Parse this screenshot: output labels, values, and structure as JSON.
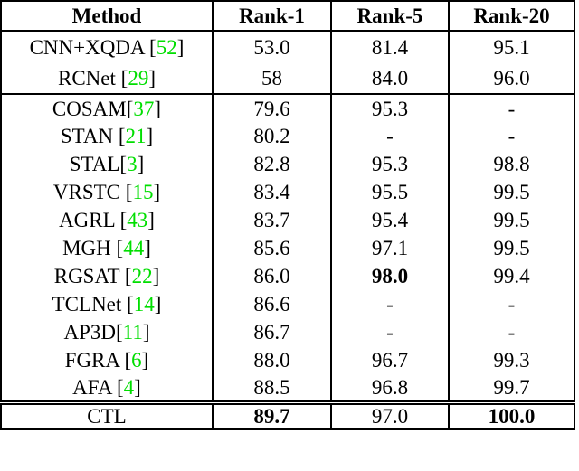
{
  "colors": {
    "citation_green": "#00DE00"
  },
  "table": {
    "headers": {
      "method": "Method",
      "rank1": "Rank-1",
      "rank5": "Rank-5",
      "rank20": "Rank-20"
    },
    "rows": [
      {
        "name": "CNN+XQDA ",
        "open": "[",
        "cite": "52",
        "close": "]",
        "rank1": "53.0",
        "rank5": "81.4",
        "rank20": "95.1"
      },
      {
        "name": "RCNet ",
        "open": "[",
        "cite": "29",
        "close": "]",
        "rank1": "58",
        "rank5": "84.0",
        "rank20": "96.0"
      },
      {
        "name": "COSAM",
        "open": "[",
        "cite": "37",
        "close": "]",
        "rank1": "79.6",
        "rank5": "95.3",
        "rank20": "-"
      },
      {
        "name": "STAN ",
        "open": "[",
        "cite": "21",
        "close": "]",
        "rank1": "80.2",
        "rank5": "-",
        "rank20": "-"
      },
      {
        "name": "STAL",
        "open": "[",
        "cite": "3",
        "close": "]",
        "rank1": "82.8",
        "rank5": "95.3",
        "rank20": "98.8"
      },
      {
        "name": "VRSTC ",
        "open": "[",
        "cite": "15",
        "close": "]",
        "rank1": "83.4",
        "rank5": "95.5",
        "rank20": "99.5"
      },
      {
        "name": "AGRL ",
        "open": "[",
        "cite": "43",
        "close": "]",
        "rank1": "83.7",
        "rank5": "95.4",
        "rank20": "99.5"
      },
      {
        "name": "MGH ",
        "open": "[",
        "cite": "44",
        "close": "]",
        "rank1": "85.6",
        "rank5": "97.1",
        "rank20": "99.5"
      },
      {
        "name": "RGSAT ",
        "open": "[",
        "cite": "22",
        "close": "]",
        "rank1": "86.0",
        "rank5": "98.0",
        "rank20": "99.4"
      },
      {
        "name": "TCLNet ",
        "open": "[",
        "cite": "14",
        "close": "]",
        "rank1": "86.6",
        "rank5": "-",
        "rank20": "-"
      },
      {
        "name": "AP3D",
        "open": "[",
        "cite": "11",
        "close": "]",
        "rank1": "86.7",
        "rank5": "-",
        "rank20": "-"
      },
      {
        "name": "FGRA ",
        "open": "[",
        "cite": "6",
        "close": "]",
        "rank1": "88.0",
        "rank5": "96.7",
        "rank20": "99.3"
      },
      {
        "name": "AFA ",
        "open": "[",
        "cite": "4",
        "close": "]",
        "rank1": "88.5",
        "rank5": "96.8",
        "rank20": "99.7"
      },
      {
        "name": "CTL",
        "open": "",
        "cite": "",
        "close": "",
        "rank1": "89.7",
        "rank5": "97.0",
        "rank20": "100.0"
      }
    ]
  }
}
